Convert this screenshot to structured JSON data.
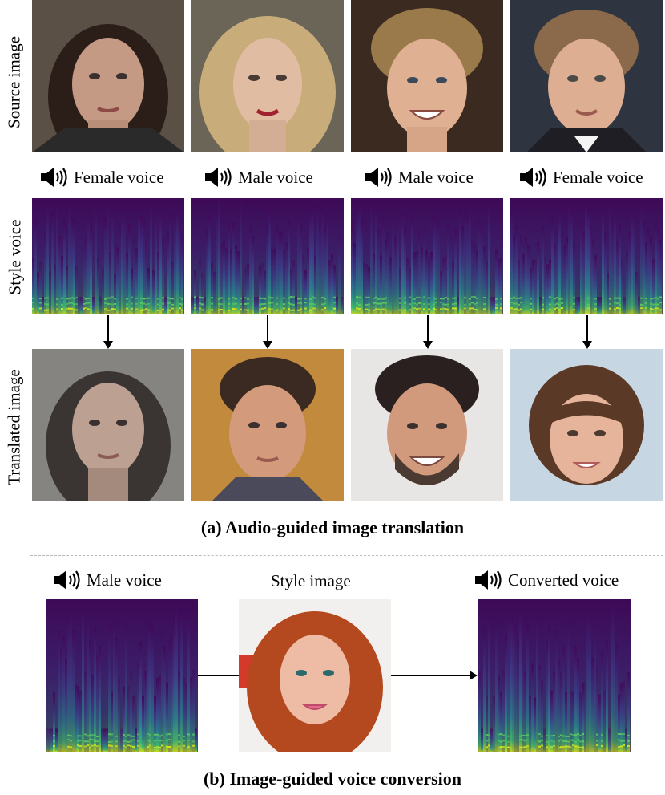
{
  "figure": {
    "row_labels": {
      "source": "Source image",
      "style": "Style voice",
      "translated": "Translated image"
    },
    "section_a": {
      "voices": [
        "Female voice",
        "Male voice",
        "Male voice",
        "Female voice"
      ],
      "caption": "(a) Audio-guided image translation"
    },
    "section_b": {
      "input_voice": "Male voice",
      "style_image_label": "Style image",
      "output_voice": "Converted voice",
      "caption": "(b) Image-guided voice conversion"
    }
  },
  "colors": {
    "spectrogram_background": "#3c0a55",
    "spectrogram_mid": "#21908d",
    "spectrogram_high": "#c8e020",
    "divider": "#b8b8b8"
  },
  "icons": [
    "speaker-icon"
  ]
}
